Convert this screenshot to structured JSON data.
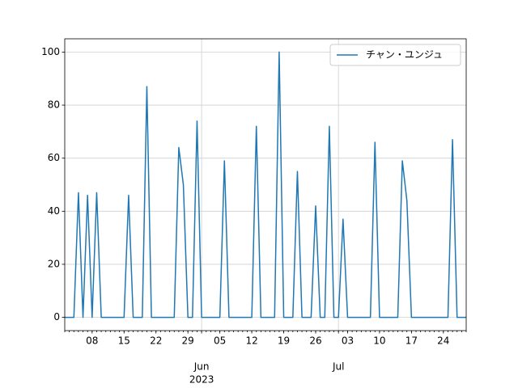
{
  "chart_data": {
    "type": "line",
    "x": [
      "2023-05-02",
      "2023-05-03",
      "2023-05-04",
      "2023-05-05",
      "2023-05-06",
      "2023-05-07",
      "2023-05-08",
      "2023-05-09",
      "2023-05-10",
      "2023-05-11",
      "2023-05-12",
      "2023-05-13",
      "2023-05-14",
      "2023-05-15",
      "2023-05-16",
      "2023-05-17",
      "2023-05-18",
      "2023-05-19",
      "2023-05-20",
      "2023-05-21",
      "2023-05-22",
      "2023-05-23",
      "2023-05-24",
      "2023-05-25",
      "2023-05-26",
      "2023-05-27",
      "2023-05-28",
      "2023-05-29",
      "2023-05-30",
      "2023-05-31",
      "2023-06-01",
      "2023-06-02",
      "2023-06-03",
      "2023-06-04",
      "2023-06-05",
      "2023-06-06",
      "2023-06-07",
      "2023-06-08",
      "2023-06-09",
      "2023-06-10",
      "2023-06-11",
      "2023-06-12",
      "2023-06-13",
      "2023-06-14",
      "2023-06-15",
      "2023-06-16",
      "2023-06-17",
      "2023-06-18",
      "2023-06-19",
      "2023-06-20",
      "2023-06-21",
      "2023-06-22",
      "2023-06-23",
      "2023-06-24",
      "2023-06-25",
      "2023-06-26",
      "2023-06-27",
      "2023-06-28",
      "2023-06-29",
      "2023-06-30",
      "2023-07-01",
      "2023-07-02",
      "2023-07-03",
      "2023-07-04",
      "2023-07-05",
      "2023-07-06",
      "2023-07-07",
      "2023-07-08",
      "2023-07-09",
      "2023-07-10",
      "2023-07-11",
      "2023-07-12",
      "2023-07-13",
      "2023-07-14",
      "2023-07-15",
      "2023-07-16",
      "2023-07-17",
      "2023-07-18",
      "2023-07-19",
      "2023-07-20",
      "2023-07-21",
      "2023-07-22",
      "2023-07-23",
      "2023-07-24",
      "2023-07-25",
      "2023-07-26",
      "2023-07-27",
      "2023-07-28",
      "2023-07-29"
    ],
    "series": [
      {
        "name": "チャン・ユンジュ",
        "color": "#1f77b4",
        "values": [
          0,
          0,
          0,
          47,
          0,
          46,
          0,
          47,
          0,
          0,
          0,
          0,
          0,
          0,
          46,
          0,
          0,
          0,
          87,
          0,
          0,
          0,
          0,
          0,
          0,
          64,
          50,
          0,
          0,
          74,
          0,
          0,
          0,
          0,
          0,
          59,
          0,
          0,
          0,
          0,
          0,
          0,
          72,
          0,
          0,
          0,
          0,
          100,
          0,
          0,
          0,
          55,
          0,
          0,
          0,
          42,
          0,
          0,
          72,
          0,
          0,
          37,
          0,
          0,
          0,
          0,
          0,
          0,
          66,
          0,
          0,
          0,
          0,
          0,
          59,
          44,
          0,
          0,
          0,
          0,
          0,
          0,
          0,
          0,
          0,
          67,
          0,
          0,
          0
        ]
      }
    ],
    "xlim": [
      "2023-05-02",
      "2023-07-29"
    ],
    "xticks": [
      {
        "value": "2023-05-08",
        "label": "08"
      },
      {
        "value": "2023-05-15",
        "label": "15"
      },
      {
        "value": "2023-05-22",
        "label": "22"
      },
      {
        "value": "2023-05-29",
        "label": "29"
      },
      {
        "value": "2023-06-05",
        "label": "05"
      },
      {
        "value": "2023-06-12",
        "label": "12"
      },
      {
        "value": "2023-06-19",
        "label": "19"
      },
      {
        "value": "2023-06-26",
        "label": "26"
      },
      {
        "value": "2023-07-03",
        "label": "03"
      },
      {
        "value": "2023-07-10",
        "label": "10"
      },
      {
        "value": "2023-07-17",
        "label": "17"
      },
      {
        "value": "2023-07-24",
        "label": "24"
      }
    ],
    "month_ticks": [
      {
        "value": "2023-06-01",
        "label": "Jun",
        "year": "2023"
      },
      {
        "value": "2023-07-01",
        "label": "Jul"
      }
    ],
    "ylim": [
      -5,
      105
    ],
    "yticks": [
      0,
      20,
      40,
      60,
      80,
      100
    ],
    "grid": true,
    "legend": "upper right"
  }
}
